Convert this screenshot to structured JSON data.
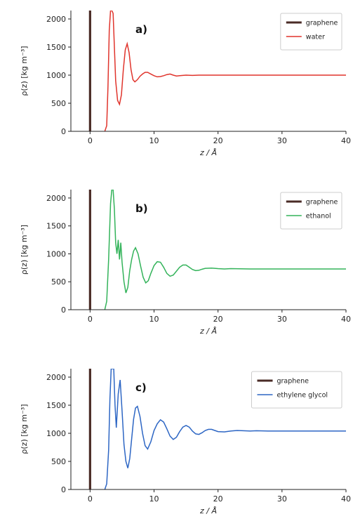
{
  "chart_data": [
    {
      "type": "line",
      "panel_label": "a)",
      "xlabel": "z / Å",
      "ylabel": "ρ(z) [kg m⁻³]",
      "xlim": [
        -3,
        40
      ],
      "ylim": [
        0,
        2150
      ],
      "xticks": [
        0,
        10,
        20,
        30,
        40
      ],
      "yticks": [
        0,
        500,
        1000,
        1500,
        2000
      ],
      "legend_position": "top-right",
      "series": [
        {
          "name": "graphene",
          "color": "#4a2b26",
          "style": "vertical-bar",
          "x": 0
        },
        {
          "name": "water",
          "color": "#e0342c",
          "x": [
            2.3,
            2.6,
            2.8,
            3.0,
            3.2,
            3.4,
            3.6,
            3.8,
            4.0,
            4.3,
            4.6,
            4.9,
            5.2,
            5.5,
            5.8,
            6.1,
            6.4,
            6.7,
            7.0,
            7.4,
            7.8,
            8.2,
            8.6,
            9.0,
            9.5,
            10.0,
            10.5,
            11.0,
            11.5,
            12.0,
            12.5,
            13.0,
            13.5,
            14.0,
            15.0,
            16.0,
            17.0,
            18.0,
            20.0,
            25.0,
            30.0,
            35.0,
            40.0
          ],
          "y": [
            0,
            100,
            800,
            1800,
            2150,
            2150,
            2100,
            1500,
            900,
            550,
            480,
            650,
            1100,
            1450,
            1560,
            1400,
            1100,
            920,
            880,
            920,
            980,
            1020,
            1050,
            1050,
            1020,
            990,
            970,
            975,
            990,
            1010,
            1020,
            1000,
            985,
            990,
            1000,
            995,
            1000,
            1000,
            1000,
            1000,
            1000,
            1000,
            1000
          ]
        }
      ]
    },
    {
      "type": "line",
      "panel_label": "b)",
      "xlabel": "z / Å",
      "ylabel": "ρ(z) [kg m⁻³]",
      "xlim": [
        -3,
        40
      ],
      "ylim": [
        0,
        2150
      ],
      "xticks": [
        0,
        10,
        20,
        30,
        40
      ],
      "yticks": [
        0,
        500,
        1000,
        1500,
        2000
      ],
      "legend_position": "top-right",
      "series": [
        {
          "name": "graphene",
          "color": "#4a2b26",
          "style": "vertical-bar",
          "x": 0
        },
        {
          "name": "ethanol",
          "color": "#33b35a",
          "x": [
            2.3,
            2.6,
            2.9,
            3.2,
            3.4,
            3.6,
            3.8,
            4.0,
            4.2,
            4.4,
            4.6,
            4.8,
            5.0,
            5.3,
            5.6,
            5.9,
            6.2,
            6.5,
            6.8,
            7.1,
            7.5,
            7.9,
            8.3,
            8.7,
            9.1,
            9.5,
            10.0,
            10.5,
            11.0,
            11.5,
            12.0,
            12.5,
            13.0,
            13.5,
            14.0,
            14.5,
            15.0,
            15.5,
            16.0,
            16.5,
            17.0,
            17.5,
            18.0,
            19.0,
            20.0,
            21.0,
            22.0,
            25.0,
            30.0,
            35.0,
            40.0
          ],
          "y": [
            0,
            150,
            900,
            1900,
            2150,
            2150,
            1800,
            1200,
            1000,
            1250,
            900,
            1200,
            850,
            500,
            300,
            400,
            700,
            900,
            1050,
            1110,
            1000,
            780,
            580,
            480,
            520,
            650,
            790,
            860,
            850,
            760,
            650,
            600,
            620,
            690,
            760,
            800,
            800,
            760,
            720,
            700,
            705,
            725,
            740,
            745,
            735,
            730,
            735,
            730,
            730,
            730,
            730
          ]
        }
      ]
    },
    {
      "type": "line",
      "panel_label": "c)",
      "xlabel": "z / Å",
      "ylabel": "ρ(z) [kg m⁻³]",
      "xlim": [
        -3,
        40
      ],
      "ylim": [
        0,
        2150
      ],
      "xticks": [
        0,
        10,
        20,
        30,
        40
      ],
      "yticks": [
        0,
        500,
        1000,
        1500,
        2000
      ],
      "legend_position": "top-right",
      "series": [
        {
          "name": "graphene",
          "color": "#4a2b26",
          "style": "vertical-bar",
          "x": 0
        },
        {
          "name": "ethylene glycol",
          "color": "#2d66c4",
          "x": [
            2.3,
            2.6,
            2.9,
            3.1,
            3.3,
            3.5,
            3.7,
            3.9,
            4.1,
            4.4,
            4.7,
            5.0,
            5.3,
            5.6,
            5.9,
            6.2,
            6.5,
            6.8,
            7.1,
            7.4,
            7.8,
            8.2,
            8.6,
            9.0,
            9.5,
            10.0,
            10.5,
            11.0,
            11.5,
            12.0,
            12.5,
            13.0,
            13.5,
            14.0,
            14.5,
            15.0,
            15.5,
            16.0,
            16.5,
            17.0,
            17.5,
            18.0,
            18.5,
            19.0,
            19.5,
            20.0,
            21.0,
            22.0,
            23.0,
            24.0,
            25.0,
            26.0,
            28.0,
            30.0,
            35.0,
            40.0
          ],
          "y": [
            0,
            100,
            700,
            1600,
            2150,
            2150,
            2150,
            1500,
            1100,
            1700,
            1950,
            1400,
            800,
            500,
            380,
            550,
            900,
            1250,
            1450,
            1480,
            1300,
            1000,
            780,
            720,
            850,
            1050,
            1170,
            1240,
            1200,
            1080,
            950,
            890,
            930,
            1030,
            1110,
            1140,
            1110,
            1040,
            990,
            980,
            1010,
            1050,
            1070,
            1070,
            1050,
            1030,
            1025,
            1040,
            1050,
            1045,
            1040,
            1045,
            1040,
            1040,
            1040,
            1040
          ]
        }
      ]
    }
  ]
}
